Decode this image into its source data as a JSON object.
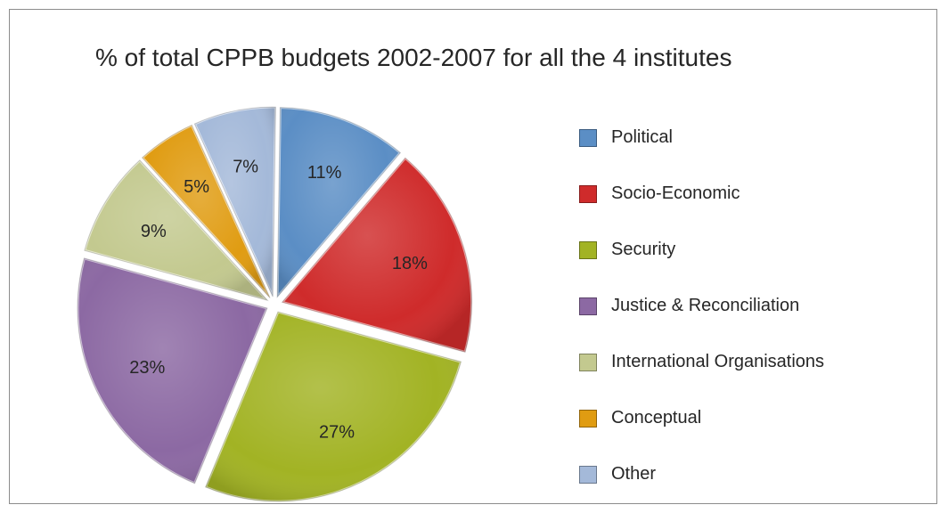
{
  "chart_data": {
    "type": "pie",
    "title": "% of total CPPB budgets 2002-2007 for all the 4 institutes",
    "legend_position": "right",
    "exploded": true,
    "slices": [
      {
        "label": "Political",
        "value": 11,
        "value_label": "11%",
        "color": "#5b8ec5"
      },
      {
        "label": "Socio-Economic",
        "value": 18,
        "value_label": "18%",
        "color": "#cf2b2b"
      },
      {
        "label": "Security",
        "value": 27,
        "value_label": "27%",
        "color": "#a2b324"
      },
      {
        "label": "Justice & Reconciliation",
        "value": 23,
        "value_label": "23%",
        "color": "#8c69a3"
      },
      {
        "label": "International Organisations",
        "value": 9,
        "value_label": "9%",
        "color": "#c3c98f"
      },
      {
        "label": "Conceptual",
        "value": 5,
        "value_label": "5%",
        "color": "#e09c12"
      },
      {
        "label": "Other",
        "value": 7,
        "value_label": "7%",
        "color": "#a4b9d9"
      }
    ]
  }
}
